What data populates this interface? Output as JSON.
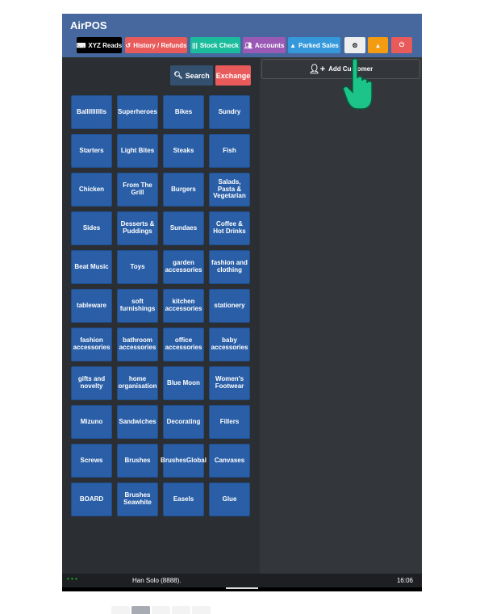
{
  "app": {
    "title": "AirPOS"
  },
  "toolbar": [
    {
      "label": "XYZ Reads",
      "icon": "keyboard-icon",
      "color": "#000000"
    },
    {
      "label": "History / Refunds",
      "icon": "history-icon",
      "color": "#e95a5a"
    },
    {
      "label": "Stock Check",
      "icon": "barcode-icon",
      "color": "#1abc9c"
    },
    {
      "label": "Accounts",
      "icon": "users-icon",
      "color": "#9b59b6"
    },
    {
      "label": "Parked Sales",
      "icon": "car-icon",
      "color": "#3498db"
    },
    {
      "label": "",
      "icon": "gear-icon",
      "color": "#eeeeee"
    },
    {
      "label": "",
      "icon": "user-icon",
      "color": "#f39c12"
    },
    {
      "label": "",
      "icon": "power-icon",
      "color": "#e95a5a"
    }
  ],
  "actions": {
    "search": "Search",
    "exchange": "Exchange"
  },
  "categories": [
    "Balllllllllls",
    "Superheroes",
    "Bikes",
    "Sundry",
    "Starters",
    "Light Bites",
    "Steaks",
    "Fish",
    "Chicken",
    "From The Grill",
    "Burgers",
    "Salads, Pasta & Vegetarian",
    "Sides",
    "Desserts & Puddings",
    "Sundaes",
    "Coffee & Hot Drinks",
    "Beat Music",
    "Toys",
    "garden accessories",
    "fashion and clothing",
    "tableware",
    "soft furnishings",
    "kitchen accessories",
    "stationery",
    "fashion accessories",
    "bathroom accessories",
    "office accessories",
    "baby accessories",
    "gifts and novelty",
    "home organisation",
    "Blue Moon",
    "Women's Footwear",
    "Mizuno",
    "Sandwiches",
    "Decorating",
    "Fillers",
    "Screws",
    "Brushes",
    "BrushesGlobal",
    "Canvases",
    "BOARD",
    "Brushes Seawhite",
    "Easels",
    "Glue"
  ],
  "customer": {
    "add_label": "Add Customer"
  },
  "pages": {
    "count": 5,
    "active": 2
  },
  "status": {
    "user": "Han Solo (8888).",
    "time": "16:06"
  }
}
